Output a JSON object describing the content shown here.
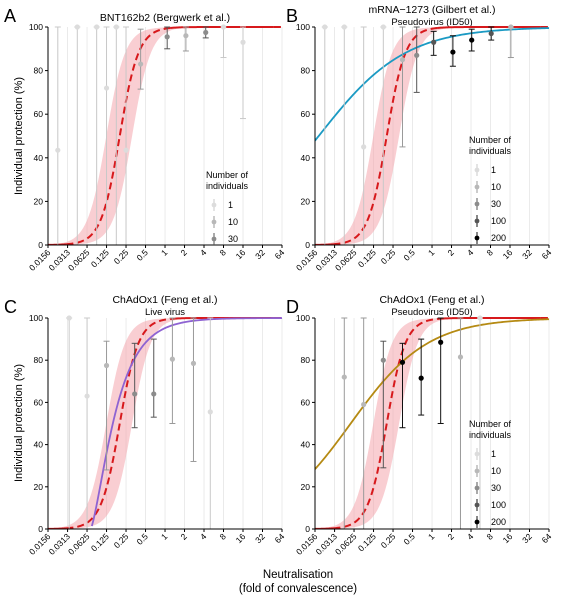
{
  "figure": {
    "ylabel": "Individual protection (%)",
    "xlabel_line1": "Neutralisation",
    "xlabel_line2": "(fold of convalescence)"
  },
  "chart_data": [
    {
      "type": "line",
      "panel_letter": "A",
      "title": "BNT162b2 (Bergwerk et al.)",
      "subtitle": "",
      "xscale": "log2",
      "xlim": [
        0.0156,
        64
      ],
      "ylim": [
        0,
        100
      ],
      "x_ticks": [
        "0.0156",
        "0.0313",
        "0.0625",
        "0.125",
        "0.25",
        "0.5",
        "1",
        "2",
        "4",
        "8",
        "16",
        "32",
        "64"
      ],
      "y_ticks": [
        "0",
        "20",
        "40",
        "60",
        "80",
        "100"
      ],
      "grid": true,
      "legend_title": [
        "Number of",
        "individuals"
      ],
      "legend_entries": [
        "1",
        "10",
        "30"
      ],
      "legend_placement": "right-middle",
      "series": [
        {
          "kind": "model",
          "color": "#d7191c",
          "band_color": "#f4a6ad",
          "dashed_range": [
            0.03,
            1.2
          ],
          "curve": {
            "shape": "logistic",
            "ec50": 0.2,
            "slope": 3.0
          }
        },
        {
          "kind": "points",
          "x": [
            0.0221,
            0.0442,
            0.088,
            0.125,
            0.177,
            0.25,
            0.42,
            1.08,
            2.1,
            4.25,
            8.0,
            16.0
          ],
          "y": [
            43.5,
            100,
            100,
            72,
            100,
            43.5,
            83,
            95.5,
            96,
            97.5,
            100,
            93
          ],
          "ylow": [
            0,
            0,
            0,
            0,
            0,
            0,
            71.5,
            90,
            89,
            95,
            86,
            58
          ],
          "yhigh": [
            100,
            100,
            100,
            100,
            100,
            100,
            99,
            100,
            100,
            100,
            100,
            100
          ],
          "n": [
            1,
            1,
            1,
            1,
            1,
            1,
            10,
            30,
            10,
            30,
            1,
            1
          ]
        }
      ]
    },
    {
      "type": "line",
      "panel_letter": "B",
      "title": "mRNA−1273 (Gilbert et al.)",
      "subtitle": "Pseudovirus (ID50)",
      "xscale": "log2",
      "xlim": [
        0.0156,
        64
      ],
      "ylim": [
        0,
        100
      ],
      "x_ticks": [
        "0.0156",
        "0.0313",
        "0.0625",
        "0.125",
        "0.25",
        "0.5",
        "1",
        "2",
        "4",
        "8",
        "16",
        "32",
        "64"
      ],
      "y_ticks": [
        "0",
        "20",
        "40",
        "60",
        "80",
        "100"
      ],
      "grid": true,
      "legend_title": [
        "Number of",
        "individuals"
      ],
      "legend_entries": [
        "1",
        "10",
        "30",
        "100",
        "200"
      ],
      "legend_placement": "right-middle",
      "series": [
        {
          "kind": "model",
          "color": "#d7191c",
          "band_color": "#f4a6ad",
          "dashed_range": [
            0.03,
            1.2
          ],
          "curve": {
            "shape": "logistic",
            "ec50": 0.2,
            "slope": 3.0
          }
        },
        {
          "kind": "comparison",
          "color": "#1b9ac3",
          "curve": {
            "shape": "logistic",
            "ec50": 0.0178,
            "slope": 0.65
          }
        },
        {
          "kind": "points",
          "x": [
            0.0221,
            0.0442,
            0.088,
            0.177,
            0.35,
            0.58,
            1.06,
            2.1,
            4.1,
            8.2,
            16.5
          ],
          "y": [
            100,
            100,
            45,
            100,
            85,
            87,
            93,
            88.5,
            94,
            97,
            100
          ],
          "ylow": [
            0,
            0,
            0,
            0,
            45,
            70,
            87,
            82,
            89,
            94,
            86
          ],
          "yhigh": [
            100,
            100,
            100,
            100,
            100,
            100,
            98,
            96,
            99,
            100,
            100
          ],
          "n": [
            1,
            1,
            1,
            1,
            10,
            30,
            100,
            200,
            200,
            100,
            10
          ]
        }
      ]
    },
    {
      "type": "line",
      "panel_letter": "C",
      "title": "ChAdOx1 (Feng et al.)",
      "subtitle": "Live virus",
      "xscale": "log2",
      "xlim": [
        0.0156,
        64
      ],
      "ylim": [
        0,
        100
      ],
      "x_ticks": [
        "0.0156",
        "0.0313",
        "0.0625",
        "0.125",
        "0.25",
        "0.5",
        "1",
        "2",
        "4",
        "8",
        "16",
        "32",
        "64"
      ],
      "y_ticks": [
        "0",
        "20",
        "40",
        "60",
        "80",
        "100"
      ],
      "grid": true,
      "legend_title": [],
      "legend_entries": [],
      "legend_placement": "",
      "series": [
        {
          "kind": "model",
          "color": "#d7191c",
          "band_color": "#f4a6ad",
          "dashed_range": [
            0.03,
            1.2
          ],
          "curve": {
            "shape": "logistic",
            "ec50": 0.2,
            "slope": 3.0
          }
        },
        {
          "kind": "comparison",
          "color": "#8e63d2",
          "curve": {
            "shape": "log-logistic-shifted",
            "x0": 0.0714,
            "scale": 0.085,
            "slope": 1.25
          }
        },
        {
          "kind": "points",
          "x": [
            0.0331,
            0.0626,
            0.125,
            0.34,
            0.67,
            1.3,
            2.75,
            5.0
          ],
          "y": [
            100,
            63,
            77.5,
            64,
            64,
            80.5,
            78.5,
            55.5
          ],
          "ylow": [
            0,
            0,
            28,
            48,
            53,
            50,
            32,
            0
          ],
          "yhigh": [
            100,
            100,
            89,
            88,
            90,
            100,
            100,
            100
          ],
          "n": [
            1,
            1,
            10,
            30,
            30,
            10,
            10,
            1
          ]
        }
      ]
    },
    {
      "type": "line",
      "panel_letter": "D",
      "title": "ChAdOx1 (Feng et al.)",
      "subtitle": "Pseudovirus (ID50)",
      "xscale": "log2",
      "xlim": [
        0.0156,
        64
      ],
      "ylim": [
        0,
        100
      ],
      "x_ticks": [
        "0.0156",
        "0.0313",
        "0.0625",
        "0.125",
        "0.25",
        "0.5",
        "1",
        "2",
        "4",
        "8",
        "16",
        "32",
        "64"
      ],
      "y_ticks": [
        "0",
        "20",
        "40",
        "60",
        "80",
        "100"
      ],
      "grid": true,
      "legend_title": [
        "Number of",
        "individuals"
      ],
      "legend_entries": [
        "1",
        "10",
        "30",
        "100",
        "200"
      ],
      "legend_placement": "right-middle",
      "series": [
        {
          "kind": "model",
          "color": "#d7191c",
          "band_color": "#f4a6ad",
          "dashed_range": [
            0.03,
            1.2
          ],
          "curve": {
            "shape": "logistic",
            "ec50": 0.2,
            "slope": 3.0
          }
        },
        {
          "kind": "comparison",
          "color": "#b58a13",
          "curve": {
            "shape": "logistic",
            "ec50": 0.0555,
            "slope": 0.73
          }
        },
        {
          "kind": "points",
          "x": [
            0.0442,
            0.088,
            0.177,
            0.35,
            0.68,
            1.36,
            2.75,
            5.5
          ],
          "y": [
            72,
            59,
            80,
            79,
            71.5,
            88.5,
            81.5,
            100
          ],
          "ylow": [
            0,
            0,
            29,
            48,
            54,
            50,
            0,
            0
          ],
          "yhigh": [
            100,
            100,
            89,
            88,
            90,
            100,
            100,
            100
          ],
          "n": [
            10,
            10,
            30,
            200,
            200,
            200,
            10,
            1
          ]
        }
      ]
    }
  ]
}
